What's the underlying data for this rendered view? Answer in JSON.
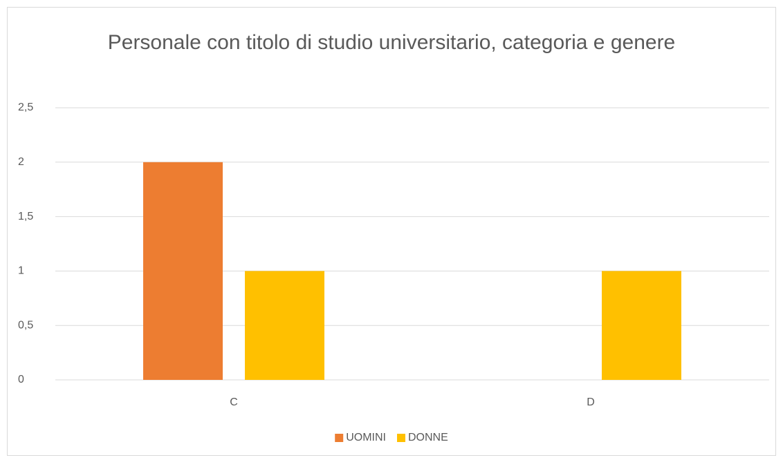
{
  "chart_data": {
    "type": "bar",
    "title": "Personale con titolo di studio universitario, categoria e genere",
    "categories": [
      "C",
      "D"
    ],
    "series": [
      {
        "name": "UOMINI",
        "color": "#ed7d31",
        "values": [
          2,
          0
        ]
      },
      {
        "name": "DONNE",
        "color": "#ffc000",
        "values": [
          1,
          1
        ]
      }
    ],
    "ylim": [
      0,
      2.5
    ],
    "yticks": [
      0,
      {
        "value": 0.5,
        "label": "0,5"
      },
      1,
      {
        "value": 1.5,
        "label": "1,5"
      },
      2,
      {
        "value": 2.5,
        "label": "2,5"
      }
    ],
    "grid": true,
    "legend": "bottom"
  }
}
